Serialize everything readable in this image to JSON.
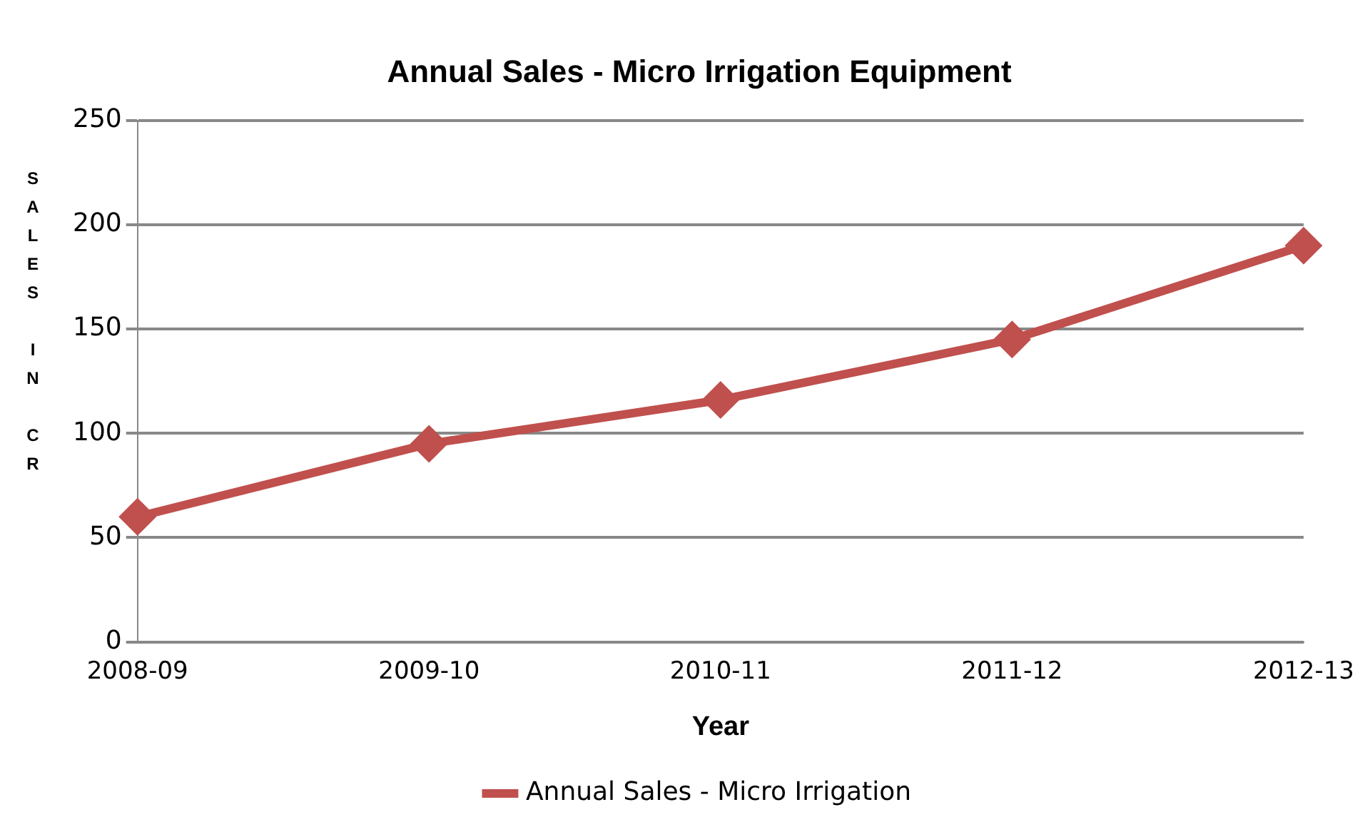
{
  "chart_data": {
    "type": "line",
    "title": "Annual Sales - Micro Irrigation Equipment",
    "xlabel": "Year",
    "ylabel": "SALES IN CR",
    "categories": [
      "2008-09",
      "2009-10",
      "2010-11",
      "2011-12",
      "2012-13"
    ],
    "series": [
      {
        "name": "Annual Sales - Micro Irrigation",
        "color": "#c0504d",
        "values": [
          60,
          95,
          116,
          145,
          190
        ]
      }
    ],
    "ylim": [
      0,
      250
    ],
    "yticks": [
      0,
      50,
      100,
      150,
      200,
      250
    ],
    "grid": "y",
    "legend": "bottom",
    "marker": "diamond",
    "line_style": "solid"
  }
}
